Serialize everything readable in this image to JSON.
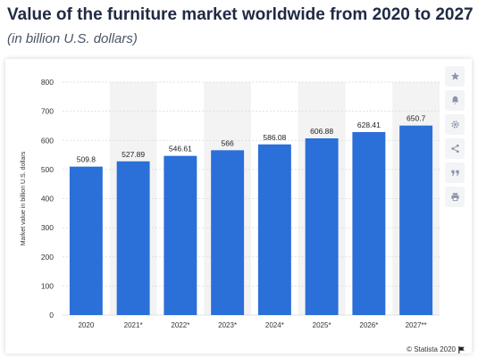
{
  "header": {
    "title": "Value of the furniture market worldwide from 2020 to 2027",
    "subtitle": "(in billion U.S. dollars)"
  },
  "toolbar": {
    "icons": [
      "star-icon",
      "bell-icon",
      "gear-icon",
      "share-icon",
      "quote-icon",
      "print-icon"
    ]
  },
  "footer": {
    "credit": "© Statista 2020"
  },
  "colors": {
    "bar": "#2b6fd8",
    "band": "#f3f3f3",
    "grid": "#d9d9d9",
    "text": "#333333"
  },
  "chart_data": {
    "type": "bar",
    "categories": [
      "2020",
      "2021*",
      "2022*",
      "2023*",
      "2024*",
      "2025*",
      "2026*",
      "2027**"
    ],
    "values": [
      509.8,
      527.89,
      546.61,
      566,
      586.08,
      606.88,
      628.41,
      650.7
    ],
    "value_labels": [
      "509.8",
      "527.89",
      "546.61",
      "566",
      "586.08",
      "606.88",
      "628.41",
      "650.7"
    ],
    "ylabel": "Market value in billion U.S. dollars",
    "ylim": [
      0,
      800
    ],
    "yticks": [
      0,
      100,
      200,
      300,
      400,
      500,
      600,
      700,
      800
    ],
    "grid": true,
    "alternating_bands": true
  }
}
